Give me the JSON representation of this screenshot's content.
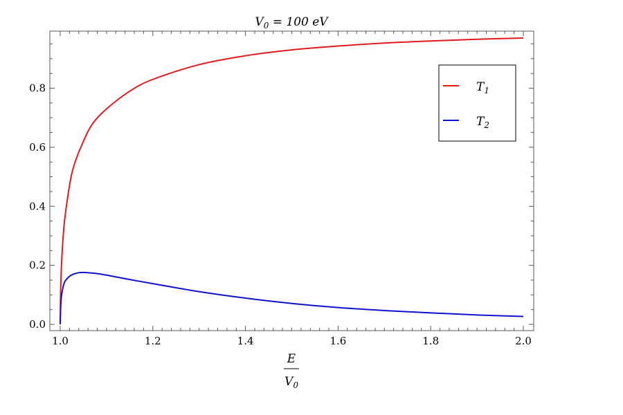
{
  "chart_data": {
    "type": "line",
    "title": {
      "main": "V",
      "sub": "0",
      "rest": " = 100 eV"
    },
    "xlabel": {
      "numerator": "E",
      "denominator": "V",
      "denominator_sub": "0"
    },
    "ylabel": "",
    "xlim": [
      1.0,
      2.0
    ],
    "ylim": [
      0.0,
      0.97
    ],
    "x_ticks": [
      {
        "value": 1.0,
        "label": "1.0"
      },
      {
        "value": 1.2,
        "label": "1.2"
      },
      {
        "value": 1.4,
        "label": "1.4"
      },
      {
        "value": 1.6,
        "label": "1.6"
      },
      {
        "value": 1.8,
        "label": "1.8"
      },
      {
        "value": 2.0,
        "label": "2.0"
      }
    ],
    "y_ticks": [
      {
        "value": 0.0,
        "label": "0.0"
      },
      {
        "value": 0.2,
        "label": "0.2"
      },
      {
        "value": 0.4,
        "label": "0.4"
      },
      {
        "value": 0.6,
        "label": "0.6"
      },
      {
        "value": 0.8,
        "label": "0.8"
      }
    ],
    "grid": false,
    "legend_position": "top-right",
    "series": [
      {
        "name": "T",
        "name_sub": "1",
        "color": "#e31a1c",
        "x": [
          1.0,
          1.001,
          1.003,
          1.006,
          1.01,
          1.02,
          1.03,
          1.05,
          1.07,
          1.1,
          1.15,
          1.2,
          1.3,
          1.4,
          1.5,
          1.6,
          1.7,
          1.8,
          1.9,
          2.0
        ],
        "y": [
          0.0,
          0.125,
          0.21,
          0.29,
          0.36,
          0.47,
          0.54,
          0.62,
          0.68,
          0.73,
          0.79,
          0.83,
          0.88,
          0.91,
          0.93,
          0.943,
          0.953,
          0.96,
          0.966,
          0.97
        ]
      },
      {
        "name": "T",
        "name_sub": "2",
        "color": "#1010d0",
        "x": [
          1.0,
          1.001,
          1.003,
          1.006,
          1.01,
          1.02,
          1.03,
          1.04,
          1.05,
          1.06,
          1.08,
          1.1,
          1.15,
          1.2,
          1.3,
          1.4,
          1.5,
          1.6,
          1.7,
          1.8,
          1.9,
          2.0
        ],
        "y": [
          0.0,
          0.06,
          0.1,
          0.125,
          0.145,
          0.163,
          0.171,
          0.175,
          0.176,
          0.175,
          0.172,
          0.167,
          0.152,
          0.138,
          0.111,
          0.089,
          0.071,
          0.057,
          0.047,
          0.039,
          0.032,
          0.027
        ]
      }
    ]
  }
}
